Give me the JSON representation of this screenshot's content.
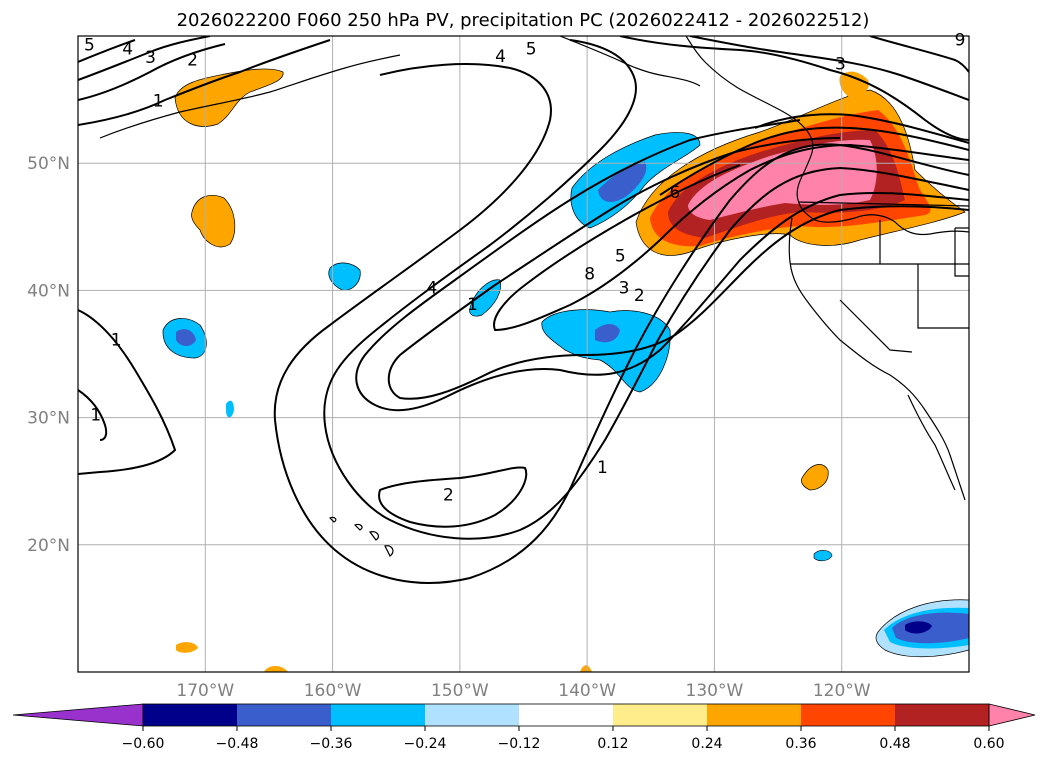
{
  "chart_data": {
    "type": "map-contour",
    "title": "2026022200 F060 250 hPa PV, precipitation PC (2026022412 - 2026022512)",
    "lon_range": [
      -180,
      -110
    ],
    "lat_range": [
      10,
      60
    ],
    "lat_ticks": [
      {
        "value": 50,
        "label": "50°N"
      },
      {
        "value": 40,
        "label": "40°N"
      },
      {
        "value": 30,
        "label": "30°N"
      },
      {
        "value": 20,
        "label": "20°N"
      }
    ],
    "lon_ticks": [
      {
        "value": -170,
        "label": "170°W"
      },
      {
        "value": -160,
        "label": "160°W"
      },
      {
        "value": -150,
        "label": "150°W"
      },
      {
        "value": -140,
        "label": "140°W"
      },
      {
        "value": -130,
        "label": "130°W"
      },
      {
        "value": -120,
        "label": "120°W"
      }
    ],
    "colorbar": {
      "tick_labels": [
        "−0.60",
        "−0.48",
        "−0.36",
        "−0.24",
        "−0.12",
        "0.12",
        "0.24",
        "0.36",
        "0.48",
        "0.60"
      ],
      "colors": [
        "#9932cc",
        "#00008b",
        "#3a5fcd",
        "#00bfff",
        "#b0e2ff",
        "#ffffff",
        "#ffec8b",
        "#ffa500",
        "#ff4500",
        "#b22222",
        "#ff82ab"
      ],
      "extend": "both"
    },
    "pv_contour_labels": [
      {
        "text": "5",
        "lon": -179.1,
        "lat": 59.1
      },
      {
        "text": "4",
        "lon": -176.1,
        "lat": 58.8
      },
      {
        "text": "3",
        "lon": -174.3,
        "lat": 58.1
      },
      {
        "text": "2",
        "lon": -171.0,
        "lat": 57.9
      },
      {
        "text": "1",
        "lon": -173.7,
        "lat": 54.7
      },
      {
        "text": "4",
        "lon": -146.8,
        "lat": 58.2
      },
      {
        "text": "5",
        "lon": -144.4,
        "lat": 58.8
      },
      {
        "text": "3",
        "lon": -120.1,
        "lat": 57.6
      },
      {
        "text": "9",
        "lon": -110.7,
        "lat": 59.5
      },
      {
        "text": "6",
        "lon": -133.1,
        "lat": 47.5
      },
      {
        "text": "4",
        "lon": -152.2,
        "lat": 40.0
      },
      {
        "text": "1",
        "lon": -149.0,
        "lat": 38.7
      },
      {
        "text": "8",
        "lon": -139.8,
        "lat": 41.1
      },
      {
        "text": "5",
        "lon": -137.4,
        "lat": 42.5
      },
      {
        "text": "3",
        "lon": -137.1,
        "lat": 40.0
      },
      {
        "text": "2",
        "lon": -135.9,
        "lat": 39.4
      },
      {
        "text": "1",
        "lon": -177.0,
        "lat": 35.9
      },
      {
        "text": "1",
        "lon": -178.6,
        "lat": 30.0
      },
      {
        "text": "2",
        "lon": -150.9,
        "lat": 23.7
      },
      {
        "text": "1",
        "lon": -138.8,
        "lat": 25.9
      }
    ]
  }
}
